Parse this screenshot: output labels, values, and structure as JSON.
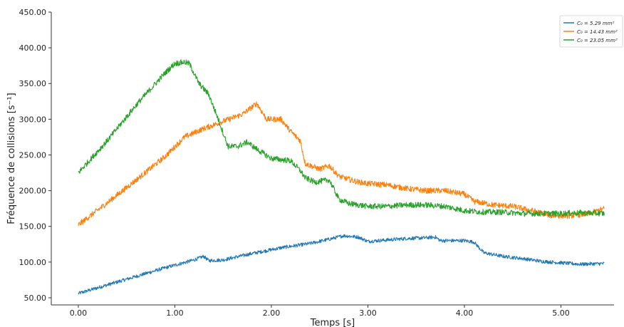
{
  "chart_data": {
    "type": "line",
    "xlabel": "Temps [s]",
    "ylabel": "Fréquence de collisions [s⁻¹]",
    "xlim": [
      -0.28,
      5.55
    ],
    "ylim": [
      40,
      450
    ],
    "x_ticks": [
      0,
      1,
      2,
      3,
      4,
      5
    ],
    "x_tick_labels": [
      "0.00",
      "1.00",
      "2.00",
      "3.00",
      "4.00",
      "5.00"
    ],
    "y_ticks": [
      50,
      100,
      150,
      200,
      250,
      300,
      350,
      400,
      450
    ],
    "y_tick_labels": [
      "50.00",
      "100.00",
      "150.00",
      "200.00",
      "250.00",
      "300.00",
      "350.00",
      "400.00",
      "450.00"
    ],
    "grid": false,
    "legend_position": "top-right",
    "series": [
      {
        "name": "C₀ = 5.29 mm²",
        "color": "#1f77b4",
        "noise": 2.5,
        "x": [
          0.0,
          0.3,
          0.6,
          0.9,
          1.2,
          1.3,
          1.35,
          1.5,
          1.8,
          2.1,
          2.4,
          2.6,
          2.75,
          2.9,
          3.0,
          3.2,
          3.4,
          3.6,
          3.7,
          3.75,
          4.0,
          4.1,
          4.2,
          4.4,
          4.6,
          4.8,
          5.0,
          5.2,
          5.45
        ],
        "y": [
          56,
          68,
          80,
          92,
          103,
          108,
          102,
          103,
          112,
          120,
          126,
          132,
          137,
          135,
          129,
          131,
          133,
          134,
          135,
          130,
          130,
          128,
          113,
          108,
          105,
          101,
          99,
          97,
          98
        ]
      },
      {
        "name": "C₀ = 14.43 mm²",
        "color": "#ff7f0e",
        "noise": 4,
        "x": [
          0.0,
          0.3,
          0.6,
          0.9,
          1.1,
          1.3,
          1.5,
          1.7,
          1.85,
          1.95,
          2.1,
          2.2,
          2.3,
          2.35,
          2.5,
          2.6,
          2.7,
          2.9,
          3.0,
          3.2,
          3.4,
          3.6,
          3.8,
          4.0,
          4.1,
          4.3,
          4.5,
          4.7,
          4.9,
          5.1,
          5.3,
          5.45
        ],
        "y": [
          152,
          183,
          215,
          248,
          275,
          287,
          297,
          307,
          322,
          300,
          300,
          283,
          270,
          238,
          230,
          235,
          220,
          212,
          210,
          208,
          203,
          200,
          200,
          195,
          185,
          180,
          178,
          172,
          165,
          165,
          168,
          175
        ]
      },
      {
        "name": "C₀ = 23.05 mm²",
        "color": "#2ca02c",
        "noise": 4,
        "x": [
          0.0,
          0.3,
          0.6,
          0.9,
          1.0,
          1.1,
          1.15,
          1.25,
          1.35,
          1.45,
          1.55,
          1.65,
          1.75,
          1.85,
          2.0,
          2.2,
          2.3,
          2.35,
          2.45,
          2.6,
          2.7,
          2.8,
          3.0,
          3.2,
          3.4,
          3.6,
          3.8,
          4.0,
          4.2,
          4.4,
          4.6,
          4.8,
          5.0,
          5.2,
          5.45
        ],
        "y": [
          225,
          270,
          320,
          365,
          378,
          380,
          378,
          350,
          335,
          300,
          262,
          262,
          268,
          258,
          245,
          242,
          228,
          218,
          212,
          215,
          188,
          182,
          178,
          178,
          180,
          180,
          178,
          172,
          170,
          170,
          168,
          168,
          168,
          169,
          168
        ]
      }
    ]
  }
}
